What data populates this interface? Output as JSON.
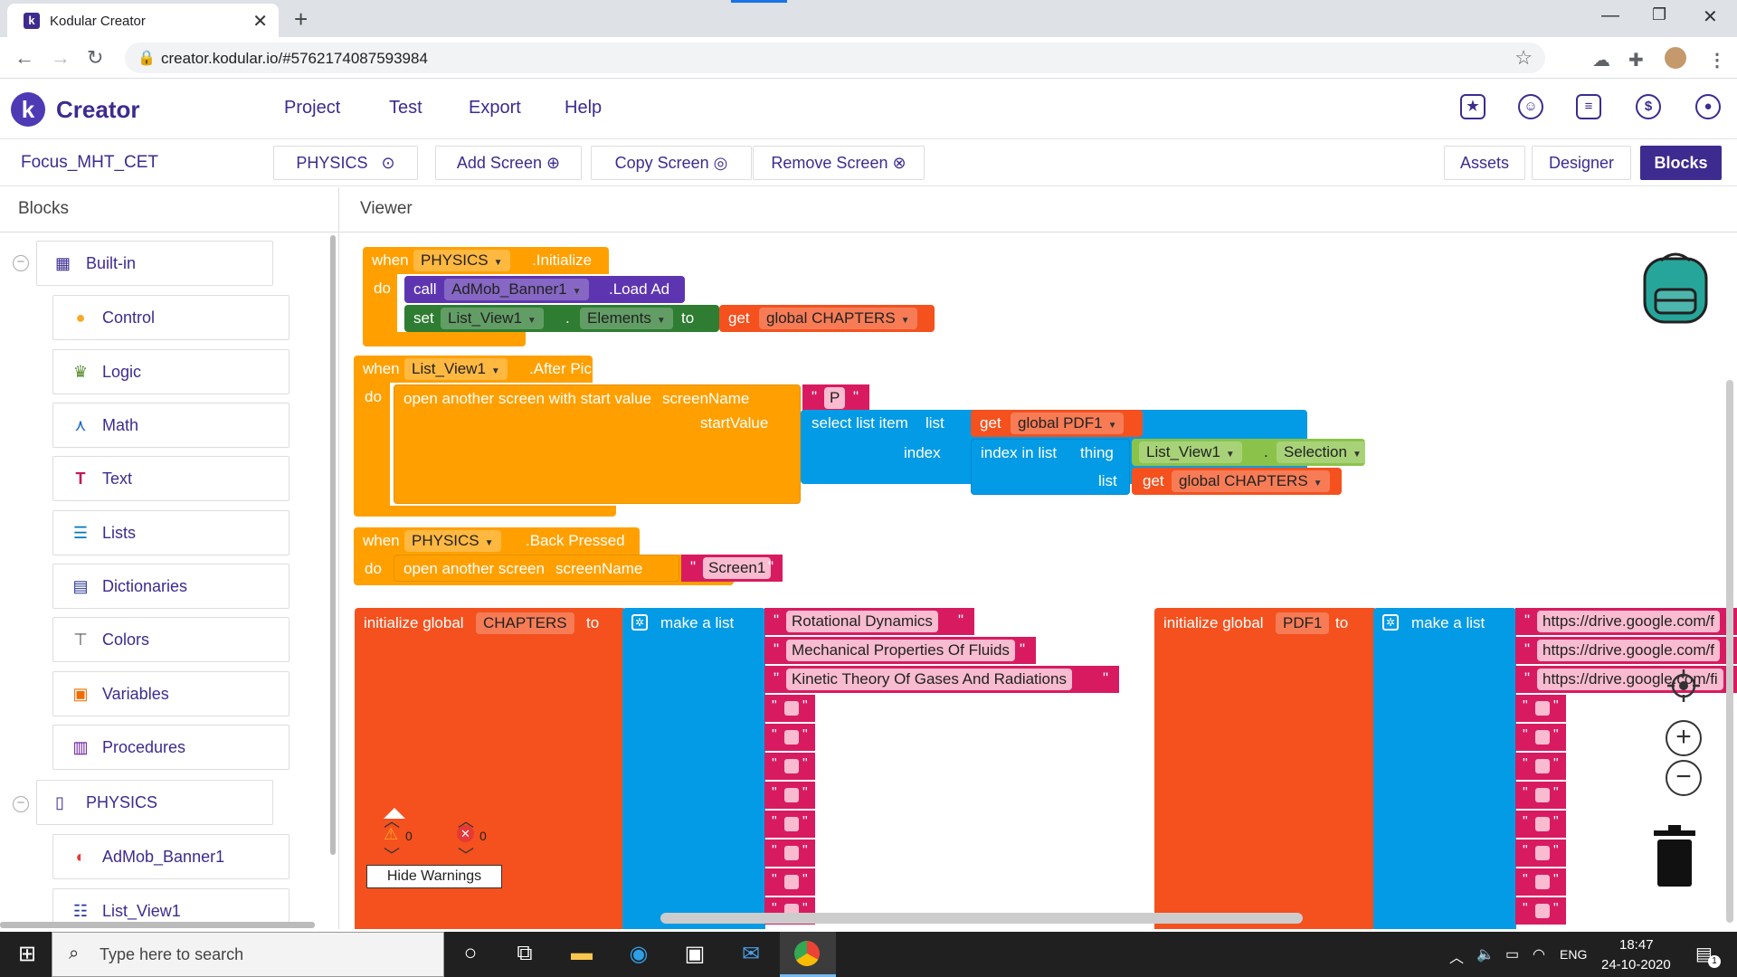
{
  "browser": {
    "tab_title": "Kodular Creator",
    "url": "creator.kodular.io/#5762174087593984"
  },
  "app": {
    "brand": "Creator",
    "menu": [
      "Project",
      "Test",
      "Export",
      "Help"
    ]
  },
  "project": {
    "name": "Focus_MHT_CET",
    "screen_selector": "PHYSICS",
    "add_screen": "Add Screen",
    "copy_screen": "Copy Screen",
    "remove_screen": "Remove Screen",
    "assets": "Assets",
    "designer": "Designer",
    "blocks": "Blocks"
  },
  "panels": {
    "blocks_title": "Blocks",
    "viewer_title": "Viewer"
  },
  "sidebar": {
    "builtin": "Built-in",
    "builtin_items": [
      "Control",
      "Logic",
      "Math",
      "Text",
      "Lists",
      "Dictionaries",
      "Colors",
      "Variables",
      "Procedures"
    ],
    "screen": "PHYSICS",
    "components": [
      "AdMob_Banner1",
      "List_View1"
    ]
  },
  "blocks": {
    "init": {
      "when": "when",
      "component": "PHYSICS",
      "event": ".Initialize",
      "do": "do",
      "call": "call",
      "ad_component": "AdMob_Banner1",
      "method": ".Load Ad",
      "set": "set",
      "lv": "List_View1",
      "dot": ".",
      "prop": "Elements",
      "to": "to",
      "get": "get",
      "var": "global CHAPTERS"
    },
    "after_picking": {
      "when": "when",
      "component": "List_View1",
      "event": ".After Picking",
      "do": "do",
      "open": "open another screen with start value",
      "screen_name_label": "screenName",
      "screen_name_value": "P",
      "start_value_label": "startValue",
      "select": "select list item",
      "list": "list",
      "index": "index",
      "get": "get",
      "var_pdf": "global PDF1",
      "index_in_list": "index in list",
      "thing": "thing",
      "lv": "List_View1",
      "dot": ".",
      "selection": "Selection",
      "list2": "list",
      "var_ch": "global CHAPTERS"
    },
    "back_pressed": {
      "when": "when",
      "component": "PHYSICS",
      "event": ".Back Pressed",
      "do": "do",
      "open": "open another screen",
      "screen_name_label": "screenName",
      "screen_value": "Screen1"
    },
    "init_chapters": {
      "label": "initialize global",
      "name": "CHAPTERS",
      "to": "to",
      "make_list": "make a list",
      "items": [
        "Rotational Dynamics",
        "Mechanical Properties Of Fluids",
        "Kinetic Theory Of Gases And Radiations"
      ]
    },
    "init_pdf": {
      "label": "initialize global",
      "name": "PDF1",
      "to": "to",
      "make_list": "make a list",
      "items": [
        "https://drive.google.com/f",
        "https://drive.google.com/f",
        "https://drive.google.com/fi"
      ]
    }
  },
  "warnings": {
    "warn_count": "0",
    "error_count": "0",
    "hide_label": "Hide Warnings"
  },
  "taskbar": {
    "search_placeholder": "Type here to search",
    "lang": "ENG",
    "time": "18:47",
    "date": "24-10-2020",
    "notif_count": "1"
  },
  "colors": {
    "event": "#ffa000",
    "call": "#5e35b1",
    "setter": "#2e7d32",
    "getter": "#f4511e",
    "list": "#039be5",
    "text": "#d81b60",
    "component": "#8bc34a",
    "brand": "#3d2b8f"
  }
}
